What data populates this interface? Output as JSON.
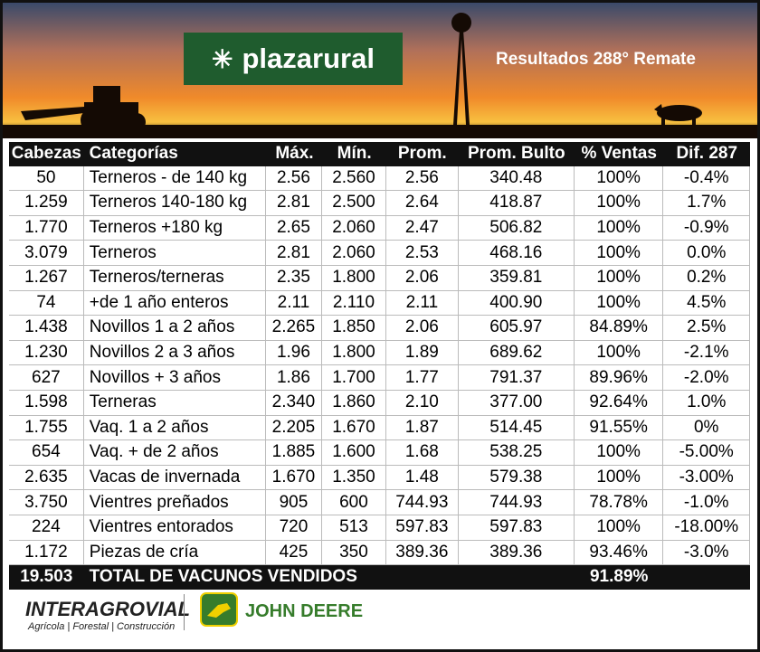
{
  "header": {
    "logo": "plazarural",
    "title": "Resultados 288° Remate"
  },
  "table": {
    "columns": [
      "Cabezas",
      "Categorías",
      "Máx.",
      "Mín.",
      "Prom.",
      "Prom. Bulto",
      "% Ventas",
      "Dif. 287"
    ],
    "rows": [
      [
        "50",
        "Terneros - de 140 kg",
        "2.56",
        "2.560",
        "2.56",
        "340.48",
        "100%",
        "-0.4%"
      ],
      [
        "1.259",
        "Terneros 140-180 kg",
        "2.81",
        "2.500",
        "2.64",
        "418.87",
        "100%",
        "1.7%"
      ],
      [
        "1.770",
        "Terneros +180 kg",
        "2.65",
        "2.060",
        "2.47",
        "506.82",
        "100%",
        "-0.9%"
      ],
      [
        "3.079",
        "Terneros",
        "2.81",
        "2.060",
        "2.53",
        "468.16",
        "100%",
        "0.0%"
      ],
      [
        "1.267",
        "Terneros/terneras",
        "2.35",
        "1.800",
        "2.06",
        "359.81",
        "100%",
        "0.2%"
      ],
      [
        "74",
        "+de 1 año enteros",
        "2.11",
        "2.110",
        "2.11",
        "400.90",
        "100%",
        "4.5%"
      ],
      [
        "1.438",
        "Novillos 1 a 2 años",
        "2.265",
        "1.850",
        "2.06",
        "605.97",
        "84.89%",
        "2.5%"
      ],
      [
        "1.230",
        "Novillos 2 a 3 años",
        "1.96",
        "1.800",
        "1.89",
        "689.62",
        "100%",
        "-2.1%"
      ],
      [
        "627",
        "Novillos + 3 años",
        "1.86",
        "1.700",
        "1.77",
        "791.37",
        "89.96%",
        "-2.0%"
      ],
      [
        "1.598",
        "Terneras",
        "2.340",
        "1.860",
        "2.10",
        "377.00",
        "92.64%",
        "1.0%"
      ],
      [
        "1.755",
        "Vaq. 1 a 2 años",
        "2.205",
        "1.670",
        "1.87",
        "514.45",
        "91.55%",
        "0%"
      ],
      [
        "654",
        "Vaq. + de 2 años",
        "1.885",
        "1.600",
        "1.68",
        "538.25",
        "100%",
        "-5.00%"
      ],
      [
        "2.635",
        "Vacas de invernada",
        "1.670",
        "1.350",
        "1.48",
        "579.38",
        "100%",
        "-3.00%"
      ],
      [
        "3.750",
        "Vientres preñados",
        "905",
        "600",
        "744.93",
        "744.93",
        "78.78%",
        "-1.0%"
      ],
      [
        "224",
        "Vientres entorados",
        "720",
        "513",
        "597.83",
        "597.83",
        "100%",
        "-18.00%"
      ],
      [
        "1.172",
        "Piezas de cría",
        "425",
        "350",
        "389.36",
        "389.36",
        "93.46%",
        "-3.0%"
      ]
    ],
    "total": {
      "cabezas": "19.503",
      "label": "TOTAL DE VACUNOS VENDIDOS",
      "ventas": "91.89%"
    }
  },
  "footer": {
    "brand1": "INTERAGROVIAL",
    "tagline": "Agrícola | Forestal | Construcción",
    "brand2": "JOHN DEERE"
  }
}
